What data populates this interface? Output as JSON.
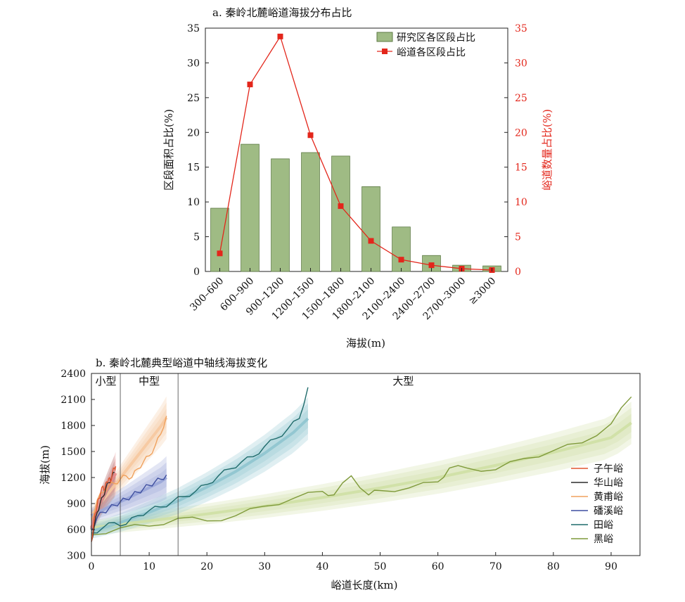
{
  "chart_data": [
    {
      "type": "bar",
      "title": "a. 秦岭北麓峪道海拔分布占比",
      "xlabel": "海拔(m)",
      "ylabel": "区段面积占比(%)",
      "ylabel_right": "峪道数量占比(%)",
      "categories": [
        "300–600",
        "600–900",
        "900–1200",
        "1200–1500",
        "1500–1800",
        "1800–2100",
        "2100–2400",
        "2400–2700",
        "2700–3000",
        "≥3000"
      ],
      "ylim": [
        0,
        35
      ],
      "yticks": [
        0,
        5,
        10,
        15,
        20,
        25,
        30,
        35
      ],
      "ylim_right": [
        0,
        35
      ],
      "yticks_right": [
        0,
        5,
        10,
        15,
        20,
        25,
        30,
        35
      ],
      "legend": "top-right",
      "series": [
        {
          "name": "研究区各区段占比",
          "kind": "bar",
          "color": "#9fbb84",
          "values": [
            9.1,
            18.3,
            16.2,
            17.1,
            16.6,
            12.2,
            6.4,
            2.3,
            0.9,
            0.8
          ]
        },
        {
          "name": "峪道各区段占比",
          "kind": "line",
          "axis": "right",
          "color": "#e3261b",
          "values": [
            2.6,
            26.9,
            33.8,
            19.6,
            9.4,
            4.4,
            1.7,
            0.9,
            0.4,
            0.2
          ]
        }
      ]
    },
    {
      "type": "line",
      "title": "b. 秦岭北麓典型峪道中轴线海拔变化",
      "xlabel": "峪道长度(km)",
      "ylabel": "海拔(m)",
      "xlim": [
        0,
        95
      ],
      "xticks": [
        0,
        10,
        20,
        30,
        40,
        50,
        60,
        70,
        80,
        90
      ],
      "ylim": [
        300,
        2400
      ],
      "yticks": [
        300,
        600,
        900,
        1200,
        1500,
        1800,
        2100,
        2400
      ],
      "legend": "right",
      "annotations": [
        {
          "text": "小型",
          "x": 2.5,
          "y": 2310
        },
        {
          "text": "中型",
          "x": 10,
          "y": 2310
        },
        {
          "text": "大型",
          "x": 54,
          "y": 2310
        }
      ],
      "vlines": [
        5,
        15
      ],
      "series": [
        {
          "name": "子午峪",
          "color": "#e0562f",
          "band_color": "#e78888",
          "x": [
            0,
            0.3,
            0.6,
            1.0,
            1.3,
            1.6,
            2.0,
            2.3,
            2.6,
            3.0,
            3.3,
            3.6,
            4.0,
            4.2
          ],
          "y": [
            460,
            600,
            780,
            880,
            960,
            1020,
            1100,
            1060,
            1150,
            1190,
            1150,
            1250,
            1310,
            1330
          ],
          "trend_x": [
            0,
            1,
            2,
            3,
            4,
            4.2
          ],
          "trend_y": [
            620,
            820,
            970,
            1100,
            1220,
            1250
          ]
        },
        {
          "name": "华山峪",
          "color": "#2b2b2b",
          "band_color": "#9a9a9a",
          "x": [
            0,
            0.5,
            1.0,
            1.5,
            2.0,
            2.5,
            3.0,
            3.5,
            4.0
          ],
          "y": [
            460,
            640,
            800,
            900,
            980,
            1080,
            1140,
            1200,
            1260
          ],
          "trend_x": [
            0,
            1,
            2,
            3,
            4
          ],
          "trend_y": [
            600,
            800,
            960,
            1090,
            1210
          ]
        },
        {
          "name": "黄甫峪",
          "color": "#f0a25e",
          "band_color": "#f6c8a0",
          "x": [
            0,
            1,
            2,
            3,
            4,
            5,
            6,
            7,
            8,
            9,
            10,
            11,
            12,
            13
          ],
          "y": [
            700,
            940,
            1030,
            1110,
            1130,
            1180,
            1220,
            1200,
            1300,
            1380,
            1450,
            1560,
            1700,
            1910
          ],
          "trend_x": [
            0,
            2,
            4,
            6,
            8,
            10,
            12,
            13
          ],
          "trend_y": [
            760,
            940,
            1110,
            1280,
            1450,
            1620,
            1790,
            1890
          ]
        },
        {
          "name": "磻溪峪",
          "color": "#3f4fa0",
          "band_color": "#9aa6d8",
          "x": [
            0,
            1,
            2,
            3,
            4,
            5,
            6,
            7,
            8,
            9,
            10,
            11,
            12,
            13
          ],
          "y": [
            590,
            740,
            800,
            840,
            880,
            920,
            950,
            990,
            1030,
            1070,
            1110,
            1150,
            1180,
            1230
          ],
          "trend_x": [
            0,
            3,
            6,
            9,
            12,
            13
          ],
          "trend_y": [
            760,
            860,
            950,
            1050,
            1150,
            1200
          ]
        },
        {
          "name": "田峪",
          "color": "#1f6b6b",
          "band_color": "#8fc4cf",
          "x": [
            0,
            2,
            4,
            6,
            8,
            10,
            12,
            14,
            16,
            18,
            20,
            22,
            24,
            26,
            28,
            30,
            32,
            34,
            36,
            37.5
          ],
          "y": [
            560,
            620,
            680,
            660,
            760,
            820,
            860,
            920,
            980,
            1040,
            1120,
            1220,
            1300,
            1380,
            1440,
            1560,
            1650,
            1760,
            1880,
            2240
          ],
          "trend_x": [
            0,
            5,
            10,
            15,
            20,
            25,
            30,
            35,
            37.5
          ],
          "trend_y": [
            580,
            680,
            800,
            930,
            1090,
            1270,
            1480,
            1720,
            1880
          ]
        },
        {
          "name": "黑峪",
          "color": "#7f9a3a",
          "band_color": "#cfe0a4",
          "x": [
            0,
            5,
            10,
            15,
            20,
            25,
            30,
            35,
            40,
            42,
            45,
            48,
            50,
            55,
            60,
            62,
            65,
            70,
            75,
            80,
            85,
            90,
            93.5
          ],
          "y": [
            540,
            620,
            640,
            730,
            700,
            760,
            870,
            960,
            1040,
            1000,
            1220,
            1000,
            1050,
            1080,
            1150,
            1310,
            1310,
            1290,
            1420,
            1510,
            1600,
            1820,
            2130
          ],
          "trend_x": [
            0,
            10,
            20,
            30,
            40,
            50,
            60,
            70,
            80,
            90,
            93.5
          ],
          "trend_y": [
            620,
            700,
            780,
            870,
            970,
            1080,
            1200,
            1340,
            1490,
            1660,
            1830
          ]
        }
      ]
    }
  ]
}
